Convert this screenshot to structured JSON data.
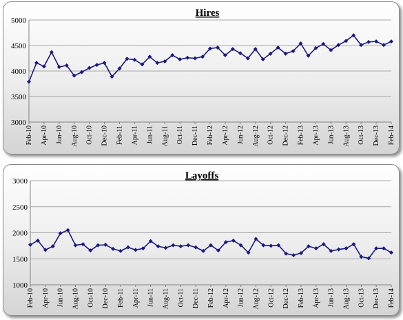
{
  "chart_data": [
    {
      "type": "line",
      "title": "Hires",
      "xlabel": "",
      "ylabel": "",
      "ylim": [
        3000,
        5000
      ],
      "yticks": [
        3000,
        3500,
        4000,
        4500,
        5000
      ],
      "grid": true,
      "line_color": "#1a1a80",
      "x": [
        "Feb-10",
        "Mar-10",
        "Apr-10",
        "May-10",
        "Jun-10",
        "Jul-10",
        "Aug-10",
        "Sep-10",
        "Oct-10",
        "Nov-10",
        "Dec-10",
        "Jan-11",
        "Feb-11",
        "Mar-11",
        "Apr-11",
        "May-11",
        "Jun-11",
        "Jul-11",
        "Aug-11",
        "Sep-11",
        "Oct-11",
        "Nov-11",
        "Dec-11",
        "Jan-12",
        "Feb-12",
        "Mar-12",
        "Apr-12",
        "May-12",
        "Jun-12",
        "Jul-12",
        "Aug-12",
        "Sep-12",
        "Oct-12",
        "Nov-12",
        "Dec-12",
        "Jan-13",
        "Feb-13",
        "Mar-13",
        "Apr-13",
        "May-13",
        "Jun-13",
        "Jul-13",
        "Aug-13",
        "Sep-13",
        "Oct-13",
        "Nov-13",
        "Dec-13",
        "Jan-14",
        "Feb-14"
      ],
      "xtick_labels": [
        "Feb-10",
        "Apr-10",
        "Jun-10",
        "Aug-10",
        "Oct-10",
        "Dec-10",
        "Feb-11",
        "Apr-11",
        "Jun-11",
        "Aug-11",
        "Oct-11",
        "Dec-11",
        "Feb-12",
        "Apr-12",
        "Jun-12",
        "Aug-12",
        "Oct-12",
        "Dec-12",
        "Feb-13",
        "Apr-13",
        "Jun-13",
        "Aug-13",
        "Oct-13",
        "Dec-13",
        "Feb-14"
      ],
      "series": [
        {
          "values": [
            3790,
            4160,
            4090,
            4370,
            4080,
            4110,
            3910,
            3980,
            4060,
            4120,
            4160,
            3890,
            4050,
            4240,
            4220,
            4130,
            4280,
            4160,
            4190,
            4310,
            4230,
            4260,
            4250,
            4280,
            4440,
            4460,
            4310,
            4430,
            4350,
            4250,
            4430,
            4230,
            4340,
            4460,
            4340,
            4390,
            4540,
            4300,
            4450,
            4530,
            4410,
            4510,
            4590,
            4700,
            4510,
            4570,
            4580,
            4510,
            4580
          ]
        }
      ]
    },
    {
      "type": "line",
      "title": "Layoffs",
      "xlabel": "",
      "ylabel": "",
      "ylim": [
        1000,
        3000
      ],
      "yticks": [
        1000,
        1500,
        2000,
        2500,
        3000
      ],
      "grid": true,
      "line_color": "#1a1a80",
      "x": [
        "Feb-10",
        "Mar-10",
        "Apr-10",
        "May-10",
        "Jun-10",
        "Jul-10",
        "Aug-10",
        "Sep-10",
        "Oct-10",
        "Nov-10",
        "Dec-10",
        "Jan-11",
        "Feb-11",
        "Mar-11",
        "Apr-11",
        "May-11",
        "Jun-11",
        "Jul-11",
        "Aug-11",
        "Sep-11",
        "Oct-11",
        "Nov-11",
        "Dec-11",
        "Jan-12",
        "Feb-12",
        "Mar-12",
        "Apr-12",
        "May-12",
        "Jun-12",
        "Jul-12",
        "Aug-12",
        "Sep-12",
        "Oct-12",
        "Nov-12",
        "Dec-12",
        "Jan-13",
        "Feb-13",
        "Mar-13",
        "Apr-13",
        "May-13",
        "Jun-13",
        "Jul-13",
        "Aug-13",
        "Sep-13",
        "Oct-13",
        "Nov-13",
        "Dec-13",
        "Jan-14",
        "Feb-14"
      ],
      "xtick_labels": [
        "Feb-10",
        "Apr-10",
        "Jun-10",
        "Aug-10",
        "Oct-10",
        "Dec-10",
        "Feb-11",
        "Apr-11",
        "Jun-11",
        "Aug-11",
        "Oct-11",
        "Dec-11",
        "Feb-12",
        "Apr-12",
        "Jun-12",
        "Aug-12",
        "Oct-12",
        "Dec-12",
        "Feb-13",
        "Apr-13",
        "Jun-13",
        "Aug-13",
        "Oct-13",
        "Dec-13",
        "Feb-14"
      ],
      "series": [
        {
          "values": [
            1770,
            1850,
            1670,
            1740,
            1990,
            2050,
            1760,
            1780,
            1660,
            1760,
            1770,
            1690,
            1650,
            1720,
            1670,
            1700,
            1840,
            1740,
            1710,
            1760,
            1740,
            1760,
            1720,
            1650,
            1760,
            1660,
            1820,
            1850,
            1760,
            1620,
            1880,
            1760,
            1750,
            1760,
            1600,
            1570,
            1610,
            1740,
            1700,
            1780,
            1650,
            1680,
            1700,
            1780,
            1540,
            1510,
            1700,
            1700,
            1620
          ]
        }
      ]
    }
  ]
}
